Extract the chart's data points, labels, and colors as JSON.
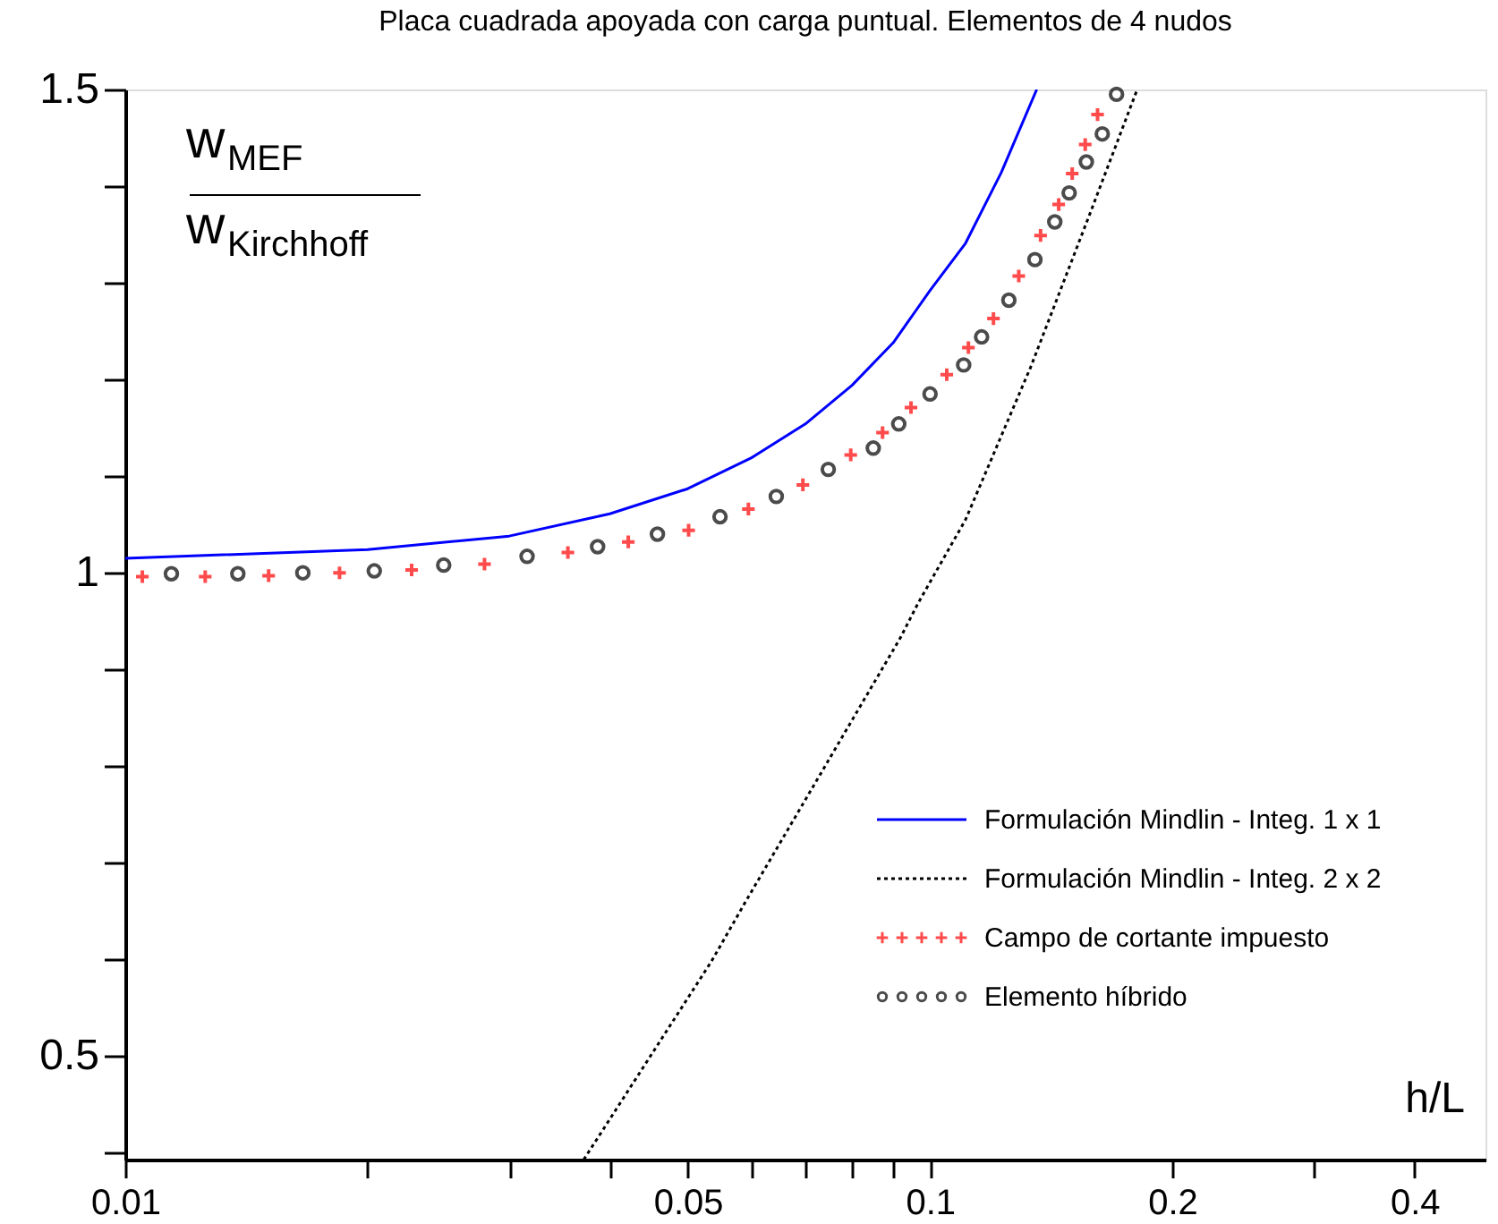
{
  "chart_data": {
    "type": "line",
    "title": "Placa cuadrada apoyada con carga puntual. Elementos de 4 nudos",
    "xlabel": "h/L",
    "annotations": [
      "w",
      "MEF",
      "w",
      "Kirchhoff"
    ],
    "log": "x",
    "xlim": [
      0.01,
      0.49
    ],
    "ylim": [
      0.393,
      1.5
    ],
    "xticks": [
      0.01,
      {
        "value": 0.02,
        "label": null
      },
      {
        "value": 0.03,
        "label": null
      },
      {
        "value": 0.04,
        "label": null
      },
      0.05,
      {
        "value": 0.06,
        "label": null
      },
      {
        "value": 0.07,
        "label": null
      },
      {
        "value": 0.08,
        "label": null
      },
      {
        "value": 0.09,
        "label": null
      },
      0.1,
      0.2,
      {
        "value": 0.3,
        "label": null
      },
      0.4
    ],
    "yticks": [
      {
        "value": 0.4,
        "label": null
      },
      0.5,
      {
        "value": 0.6,
        "label": null
      },
      {
        "value": 0.7,
        "label": null
      },
      {
        "value": 0.8,
        "label": null
      },
      {
        "value": 0.9,
        "label": null
      },
      1,
      {
        "value": 1.1,
        "label": null
      },
      {
        "value": 1.2,
        "label": null
      },
      {
        "value": 1.3,
        "label": null
      },
      {
        "value": 1.4,
        "label": null
      },
      1.5
    ],
    "grid": false,
    "legend": "bottom right",
    "series": [
      {
        "name": "Formulación Mindlin - Integ. 1 x 1",
        "color": "#0000ff",
        "marker": "none",
        "line_style": "solid",
        "x": [
          0.01,
          0.02,
          0.03,
          0.04,
          0.05,
          0.06,
          0.07,
          0.08,
          0.09,
          0.1,
          0.1107,
          0.1226,
          0.1357
        ],
        "values": [
          1.015,
          1.024,
          1.038,
          1.061,
          1.087,
          1.119,
          1.154,
          1.194,
          1.238,
          1.292,
          1.341,
          1.414,
          1.5
        ]
      },
      {
        "name": "Formulación Mindlin - Integ. 2 x 2",
        "color": "#000000",
        "marker": "none",
        "line_style": "dotted",
        "x": [
          0.03713,
          0.0535,
          0.0592,
          0.0919,
          0.0967,
          0.1107,
          0.1334,
          0.1581,
          0.1809
        ],
        "values": [
          0.393,
          0.598,
          0.662,
          0.933,
          0.969,
          1.055,
          1.213,
          1.372,
          1.5
        ]
      },
      {
        "name": "Campo de cortante impuesto",
        "type": "scatter",
        "color": "#ff0000",
        "marker": "cross",
        "x": [
          0.0105,
          0.01257,
          0.01507,
          0.01846,
          0.02269,
          0.02795,
          0.03548,
          0.04217,
          0.05012,
          0.05947,
          0.0695,
          0.0797,
          0.0873,
          0.0947,
          0.1049,
          0.1116,
          0.1199,
          0.1289,
          0.1372,
          0.1445,
          0.1502,
          0.1559,
          0.1615
        ],
        "values": [
          0.996,
          0.996,
          0.997,
          1.0,
          1.003,
          1.009,
          1.021,
          1.032,
          1.044,
          1.066,
          1.091,
          1.122,
          1.145,
          1.171,
          1.205,
          1.233,
          1.263,
          1.307,
          1.349,
          1.381,
          1.413,
          1.443,
          1.474
        ]
      },
      {
        "name": "Elemento híbrido",
        "type": "scatter",
        "color": "#000000",
        "marker": "circle",
        "x": [
          0.01141,
          0.0138,
          0.01662,
          0.02039,
          0.02487,
          0.03157,
          0.03863,
          0.04584,
          0.05483,
          0.06441,
          0.07474,
          0.08501,
          0.09144,
          0.1,
          0.1101,
          0.1159,
          0.1253,
          0.135,
          0.1429,
          0.1489,
          0.1564,
          0.1637,
          0.1705
        ],
        "values": [
          0.999,
          0.999,
          1.0,
          1.002,
          1.008,
          1.017,
          1.027,
          1.04,
          1.058,
          1.079,
          1.107,
          1.129,
          1.154,
          1.185,
          1.215,
          1.244,
          1.282,
          1.324,
          1.363,
          1.393,
          1.425,
          1.454,
          1.495
        ]
      }
    ]
  }
}
